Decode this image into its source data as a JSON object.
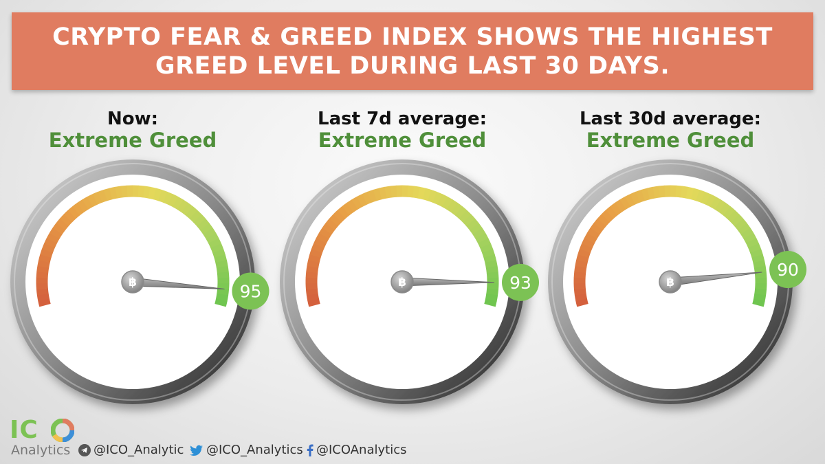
{
  "banner": {
    "line1": "CRYPTO FEAR & GREED INDEX SHOWS THE HIGHEST",
    "line2": "GREED LEVEL DURING LAST 30 DAYS."
  },
  "chart_data": [
    {
      "type": "gauge",
      "label": "Now:",
      "status": "Extreme Greed",
      "value": 95,
      "range": [
        0,
        100
      ]
    },
    {
      "type": "gauge",
      "label": "Last 7d average:",
      "status": "Extreme Greed",
      "value": 93,
      "range": [
        0,
        100
      ]
    },
    {
      "type": "gauge",
      "label": "Last 30d average:",
      "status": "Extreme Greed",
      "value": 90,
      "range": [
        0,
        100
      ]
    }
  ],
  "footer": {
    "logo_top": "IC",
    "logo_bottom": "Analytics",
    "telegram": "@ICO_Analytic",
    "twitter": "@ICO_Analytics",
    "facebook": "@ICOAnalytics"
  },
  "colors": {
    "banner": "#e07c60",
    "status": "#4f8f3a",
    "badge": "#7cc254"
  },
  "icons": [
    "bitcoin-icon",
    "telegram-icon",
    "twitter-icon",
    "facebook-icon"
  ]
}
